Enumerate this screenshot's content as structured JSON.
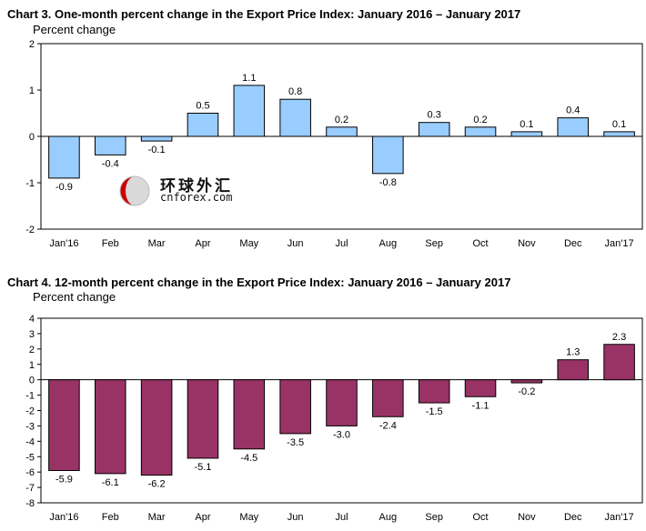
{
  "chart_data": [
    {
      "type": "bar",
      "title": "Chart 3. One-month percent change in the Export Price Index: January 2016 – January 2017",
      "ylabel": "Percent change",
      "xlabel": "",
      "categories": [
        "Jan'16",
        "Feb",
        "Mar",
        "Apr",
        "May",
        "Jun",
        "Jul",
        "Aug",
        "Sep",
        "Oct",
        "Nov",
        "Dec",
        "Jan'17"
      ],
      "values": [
        -0.9,
        -0.4,
        -0.1,
        0.5,
        1.1,
        0.8,
        0.2,
        -0.8,
        0.3,
        0.2,
        0.1,
        0.4,
        0.1
      ],
      "data_labels": [
        "-0.9",
        "-0.4",
        "-0.1",
        "0.5",
        "1.1",
        "0.8",
        "0.2",
        "-0.8",
        "0.3",
        "0.2",
        "0.1",
        "0.4",
        "0.1"
      ],
      "ylim": [
        -2,
        2
      ],
      "yticks": [
        "2",
        "1",
        "0",
        "-1",
        "-2"
      ],
      "grid": false,
      "bar_color": "#99ccff",
      "border_color": "#000000"
    },
    {
      "type": "bar",
      "title": "Chart 4. 12-month percent change in the Export Price Index: January 2016 – January 2017",
      "ylabel": "Percent change",
      "xlabel": "",
      "categories": [
        "Jan'16",
        "Feb",
        "Mar",
        "Apr",
        "May",
        "Jun",
        "Jul",
        "Aug",
        "Sep",
        "Oct",
        "Nov",
        "Dec",
        "Jan'17"
      ],
      "values": [
        -5.9,
        -6.1,
        -6.2,
        -5.1,
        -4.5,
        -3.5,
        -3.0,
        -2.4,
        -1.5,
        -1.1,
        -0.2,
        1.3,
        2.3
      ],
      "data_labels": [
        "-5.9",
        "-6.1",
        "-6.2",
        "-5.1",
        "-4.5",
        "-3.5",
        "-3.0",
        "-2.4",
        "-1.5",
        "-1.1",
        "-0.2",
        "1.3",
        "2.3"
      ],
      "ylim": [
        -8,
        4
      ],
      "yticks": [
        "4",
        "3",
        "2",
        "1",
        "0",
        "-1",
        "-2",
        "-3",
        "-4",
        "-5",
        "-6",
        "-7",
        "-8"
      ],
      "grid": false,
      "bar_color": "#993366",
      "border_color": "#000000"
    }
  ],
  "watermark": {
    "text_cn": "环球外汇",
    "text_en": "cnforex.com",
    "logo_color": "#cc0000"
  }
}
